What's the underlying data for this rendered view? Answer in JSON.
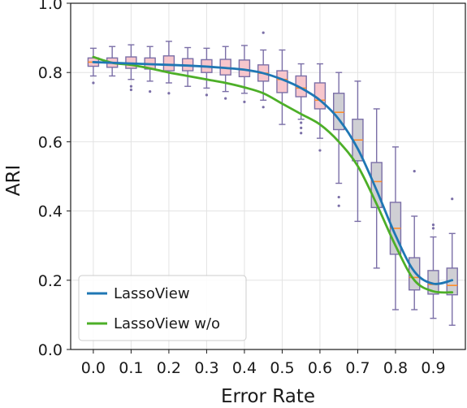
{
  "chart_data": {
    "type": "box+line",
    "xlabel": "Error Rate",
    "ylabel": "ARI",
    "xlim": [
      -0.06,
      0.985
    ],
    "ylim": [
      0.0,
      1.0
    ],
    "xticks": [
      "0.0",
      "0.1",
      "0.2",
      "0.3",
      "0.4",
      "0.5",
      "0.6",
      "0.7",
      "0.8",
      "0.9"
    ],
    "xtick_values": [
      0.0,
      0.1,
      0.2,
      0.3,
      0.4,
      0.5,
      0.6,
      0.7,
      0.8,
      0.9
    ],
    "yticks": [
      "0.0",
      "0.2",
      "0.4",
      "0.6",
      "0.8",
      "1.0"
    ],
    "ytick_values": [
      0.0,
      0.2,
      0.4,
      0.6,
      0.8,
      1.0
    ],
    "grid": true,
    "legend_position": "lower-left",
    "series": [
      {
        "name": "LassoView",
        "color": "#1f77b4",
        "x": [
          0.0,
          0.05,
          0.1,
          0.15,
          0.2,
          0.25,
          0.3,
          0.35,
          0.4,
          0.45,
          0.5,
          0.55,
          0.6,
          0.65,
          0.7,
          0.75,
          0.8,
          0.85,
          0.9,
          0.95
        ],
        "y": [
          0.83,
          0.828,
          0.826,
          0.824,
          0.822,
          0.82,
          0.817,
          0.813,
          0.808,
          0.798,
          0.78,
          0.755,
          0.72,
          0.665,
          0.58,
          0.46,
          0.33,
          0.225,
          0.19,
          0.2
        ]
      },
      {
        "name": "LassoView w/o",
        "color": "#4daf28",
        "x": [
          0.0,
          0.05,
          0.1,
          0.15,
          0.2,
          0.25,
          0.3,
          0.35,
          0.4,
          0.45,
          0.5,
          0.55,
          0.6,
          0.65,
          0.7,
          0.75,
          0.8,
          0.85,
          0.9,
          0.95
        ],
        "y": [
          0.845,
          0.828,
          0.822,
          0.812,
          0.8,
          0.79,
          0.78,
          0.77,
          0.757,
          0.74,
          0.71,
          0.68,
          0.65,
          0.6,
          0.53,
          0.42,
          0.3,
          0.2,
          0.168,
          0.165
        ]
      }
    ],
    "boxes": [
      {
        "x": 0.0,
        "q1": 0.818,
        "median": 0.83,
        "q3": 0.842,
        "whisker_low": 0.79,
        "whisker_high": 0.87,
        "fliers": [
          0.77
        ],
        "fill": "#f7c6cc"
      },
      {
        "x": 0.05,
        "q1": 0.815,
        "median": 0.828,
        "q3": 0.842,
        "whisker_low": 0.79,
        "whisker_high": 0.875,
        "fliers": [],
        "fill": "#f7c6cc"
      },
      {
        "x": 0.1,
        "q1": 0.812,
        "median": 0.826,
        "q3": 0.845,
        "whisker_low": 0.78,
        "whisker_high": 0.88,
        "fliers": [
          0.76,
          0.75
        ],
        "fill": "#f7c6cc"
      },
      {
        "x": 0.15,
        "q1": 0.81,
        "median": 0.824,
        "q3": 0.842,
        "whisker_low": 0.775,
        "whisker_high": 0.875,
        "fliers": [
          0.745
        ],
        "fill": "#f7c6cc"
      },
      {
        "x": 0.2,
        "q1": 0.805,
        "median": 0.822,
        "q3": 0.848,
        "whisker_low": 0.77,
        "whisker_high": 0.89,
        "fliers": [
          0.74
        ],
        "fill": "#f7c6cc"
      },
      {
        "x": 0.25,
        "q1": 0.805,
        "median": 0.82,
        "q3": 0.84,
        "whisker_low": 0.76,
        "whisker_high": 0.872,
        "fliers": [],
        "fill": "#f7c6cc"
      },
      {
        "x": 0.3,
        "q1": 0.8,
        "median": 0.817,
        "q3": 0.837,
        "whisker_low": 0.755,
        "whisker_high": 0.87,
        "fliers": [
          0.735
        ],
        "fill": "#f7c6cc"
      },
      {
        "x": 0.35,
        "q1": 0.793,
        "median": 0.813,
        "q3": 0.838,
        "whisker_low": 0.745,
        "whisker_high": 0.875,
        "fliers": [
          0.725
        ],
        "fill": "#f7c6cc"
      },
      {
        "x": 0.4,
        "q1": 0.788,
        "median": 0.808,
        "q3": 0.836,
        "whisker_low": 0.74,
        "whisker_high": 0.878,
        "fliers": [
          0.715
        ],
        "fill": "#f7c6cc"
      },
      {
        "x": 0.45,
        "q1": 0.775,
        "median": 0.798,
        "q3": 0.822,
        "whisker_low": 0.72,
        "whisker_high": 0.865,
        "fliers": [
          0.915,
          0.7
        ],
        "fill": "#f7c6cc"
      },
      {
        "x": 0.5,
        "q1": 0.742,
        "median": 0.78,
        "q3": 0.805,
        "whisker_low": 0.65,
        "whisker_high": 0.865,
        "fliers": [],
        "fill": "#f7c6cc"
      },
      {
        "x": 0.55,
        "q1": 0.73,
        "median": 0.755,
        "q3": 0.79,
        "whisker_low": 0.665,
        "whisker_high": 0.825,
        "fliers": [
          0.655,
          0.64,
          0.625
        ],
        "fill": "#f7c6cc"
      },
      {
        "x": 0.6,
        "q1": 0.695,
        "median": 0.72,
        "q3": 0.77,
        "whisker_low": 0.61,
        "whisker_high": 0.825,
        "fliers": [
          0.575
        ],
        "fill": "#f7c6cc"
      },
      {
        "x": 0.65,
        "q1": 0.635,
        "median": 0.685,
        "q3": 0.74,
        "whisker_low": 0.48,
        "whisker_high": 0.8,
        "fliers": [
          0.44,
          0.415
        ],
        "fill": "#cfcfd4"
      },
      {
        "x": 0.7,
        "q1": 0.545,
        "median": 0.605,
        "q3": 0.665,
        "whisker_low": 0.37,
        "whisker_high": 0.775,
        "fliers": [],
        "fill": "#cfcfd4"
      },
      {
        "x": 0.75,
        "q1": 0.41,
        "median": 0.485,
        "q3": 0.54,
        "whisker_low": 0.235,
        "whisker_high": 0.695,
        "fliers": [],
        "fill": "#cfcfd4"
      },
      {
        "x": 0.8,
        "q1": 0.275,
        "median": 0.35,
        "q3": 0.425,
        "whisker_low": 0.115,
        "whisker_high": 0.585,
        "fliers": [],
        "fill": "#cfcfd4"
      },
      {
        "x": 0.85,
        "q1": 0.172,
        "median": 0.208,
        "q3": 0.265,
        "whisker_low": 0.115,
        "whisker_high": 0.385,
        "fliers": [
          0.515
        ],
        "fill": "#cfcfd4"
      },
      {
        "x": 0.9,
        "q1": 0.16,
        "median": 0.188,
        "q3": 0.228,
        "whisker_low": 0.09,
        "whisker_high": 0.325,
        "fliers": [
          0.36,
          0.35
        ],
        "fill": "#cfcfd4"
      },
      {
        "x": 0.95,
        "q1": 0.158,
        "median": 0.185,
        "q3": 0.235,
        "whisker_low": 0.07,
        "whisker_high": 0.335,
        "fliers": [
          0.435
        ],
        "fill": "#cfcfd4"
      }
    ],
    "box_edge_color": "#7b6fa7",
    "median_color": "#ff8c2a",
    "flier_color": "#7b6fa7"
  }
}
